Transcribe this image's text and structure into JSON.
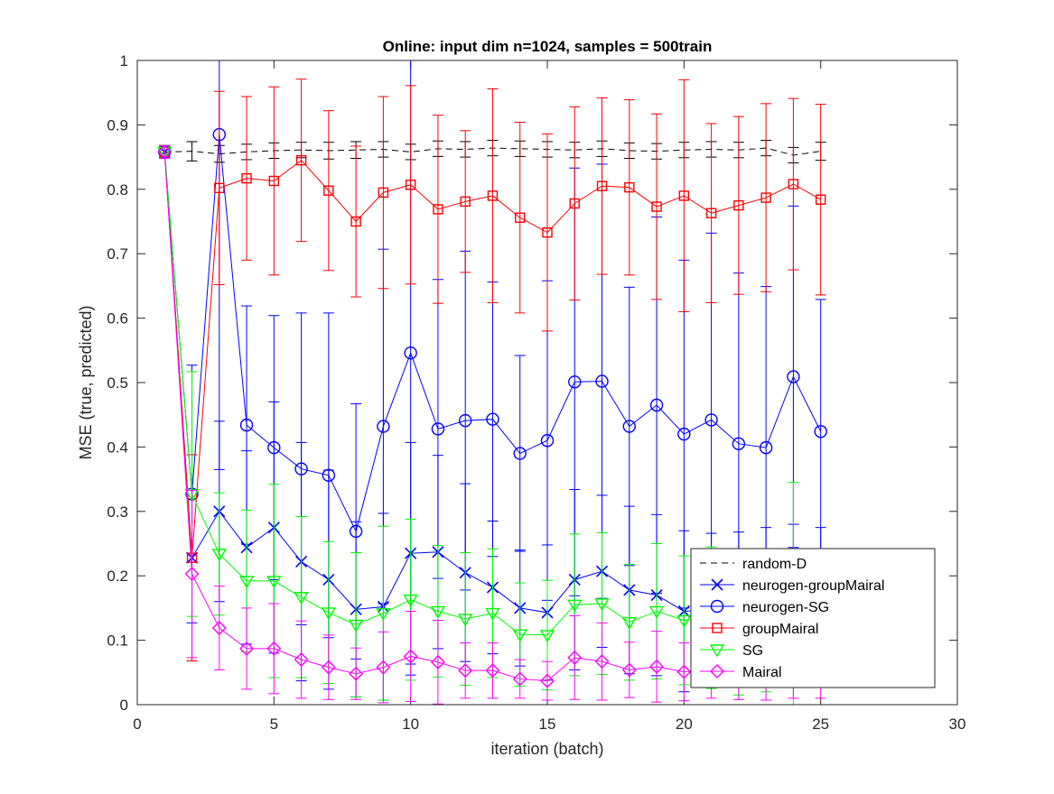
{
  "chart_data": {
    "type": "line",
    "title": "Online:  input dim n=1024, samples = 500train",
    "xlabel": "iteration (batch)",
    "ylabel": "MSE (true, predicted)",
    "xlim": [
      0,
      30
    ],
    "ylim": [
      0,
      1
    ],
    "x_ticks": [
      "0",
      "5",
      "10",
      "15",
      "20",
      "25",
      "30"
    ],
    "y_ticks": [
      "0",
      "0.1",
      "0.2",
      "0.3",
      "0.4",
      "0.5",
      "0.6",
      "0.7",
      "0.8",
      "0.9",
      "1"
    ],
    "grid": false,
    "legend_position": "bottom-right",
    "error_bars": true,
    "x": [
      1,
      2,
      3,
      4,
      5,
      6,
      7,
      8,
      9,
      10,
      11,
      12,
      13,
      14,
      15,
      16,
      17,
      18,
      19,
      20,
      21,
      22,
      23,
      24,
      25
    ],
    "series": [
      {
        "name": "random-D",
        "color": "#000000",
        "line": "dashed",
        "marker": "none",
        "values": [
          0.858,
          0.859,
          0.855,
          0.858,
          0.86,
          0.861,
          0.86,
          0.861,
          0.862,
          0.858,
          0.863,
          0.862,
          0.864,
          0.863,
          0.862,
          0.861,
          0.863,
          0.86,
          0.859,
          0.861,
          0.862,
          0.861,
          0.864,
          0.853,
          0.859
        ],
        "err": [
          0.008,
          0.015,
          0.013,
          0.012,
          0.012,
          0.012,
          0.013,
          0.013,
          0.012,
          0.012,
          0.012,
          0.012,
          0.012,
          0.012,
          0.012,
          0.012,
          0.012,
          0.012,
          0.012,
          0.012,
          0.012,
          0.012,
          0.012,
          0.012,
          0.014
        ]
      },
      {
        "name": "neurogen-groupMairal",
        "color": "#0000ff",
        "line": "solid",
        "marker": "x",
        "values": [
          0.858,
          0.228,
          0.3,
          0.244,
          0.275,
          0.222,
          0.194,
          0.148,
          0.152,
          0.235,
          0.237,
          0.205,
          0.182,
          0.15,
          0.143,
          0.194,
          0.207,
          0.178,
          0.17,
          0.145,
          0.148,
          0.15,
          0.155,
          0.16,
          0.155
        ],
        "err": [
          0.01,
          0.16,
          0.14,
          0.15,
          0.195,
          0.185,
          0.17,
          0.136,
          0.145,
          0.172,
          0.15,
          0.138,
          0.103,
          0.09,
          0.105,
          0.14,
          0.118,
          0.13,
          0.125,
          0.125,
          0.118,
          0.118,
          0.12,
          0.12,
          0.12
        ]
      },
      {
        "name": "neurogen-SG",
        "color": "#0000ff",
        "line": "solid",
        "marker": "circle",
        "values": [
          0.858,
          0.327,
          0.885,
          0.434,
          0.399,
          0.366,
          0.356,
          0.269,
          0.432,
          0.546,
          0.428,
          0.441,
          0.443,
          0.39,
          0.41,
          0.501,
          0.502,
          0.432,
          0.465,
          0.42,
          0.442,
          0.405,
          0.399,
          0.509,
          0.424
        ],
        "err": [
          0.01,
          0.2,
          0.52,
          0.185,
          0.205,
          0.242,
          0.252,
          0.198,
          0.275,
          0.5,
          0.232,
          0.263,
          0.213,
          0.152,
          0.248,
          0.332,
          0.337,
          0.216,
          0.292,
          0.27,
          0.29,
          0.265,
          0.25,
          0.265,
          0.205
        ]
      },
      {
        "name": "groupMairal",
        "color": "#ff0000",
        "line": "solid",
        "marker": "square",
        "values": [
          0.858,
          0.228,
          0.802,
          0.817,
          0.813,
          0.845,
          0.798,
          0.75,
          0.795,
          0.807,
          0.769,
          0.781,
          0.79,
          0.756,
          0.733,
          0.778,
          0.805,
          0.803,
          0.773,
          0.79,
          0.763,
          0.775,
          0.787,
          0.808,
          0.784
        ],
        "err": [
          0.01,
          0.16,
          0.15,
          0.127,
          0.146,
          0.126,
          0.124,
          0.117,
          0.149,
          0.154,
          0.146,
          0.11,
          0.166,
          0.148,
          0.153,
          0.15,
          0.137,
          0.136,
          0.144,
          0.18,
          0.139,
          0.138,
          0.146,
          0.133,
          0.148
        ]
      },
      {
        "name": "SG",
        "color": "#00ff00",
        "line": "solid",
        "marker": "triangle-down",
        "values": [
          0.858,
          0.327,
          0.234,
          0.192,
          0.192,
          0.167,
          0.143,
          0.124,
          0.142,
          0.163,
          0.145,
          0.133,
          0.142,
          0.109,
          0.108,
          0.155,
          0.157,
          0.128,
          0.145,
          0.131,
          0.135,
          0.125,
          0.13,
          0.135,
          0.13
        ],
        "err": [
          0.01,
          0.19,
          0.095,
          0.11,
          0.15,
          0.125,
          0.11,
          0.112,
          0.135,
          0.125,
          0.102,
          0.103,
          0.1,
          0.08,
          0.085,
          0.11,
          0.11,
          0.09,
          0.105,
          0.1,
          0.11,
          0.11,
          0.11,
          0.21,
          0.1
        ]
      },
      {
        "name": "Mairal",
        "color": "#ff00ff",
        "line": "solid",
        "marker": "diamond",
        "values": [
          0.858,
          0.203,
          0.119,
          0.087,
          0.087,
          0.07,
          0.058,
          0.048,
          0.058,
          0.075,
          0.066,
          0.053,
          0.053,
          0.04,
          0.037,
          0.073,
          0.067,
          0.054,
          0.059,
          0.051,
          0.055,
          0.05,
          0.052,
          0.055,
          0.05
        ],
        "err": [
          0.01,
          0.13,
          0.065,
          0.063,
          0.07,
          0.06,
          0.05,
          0.04,
          0.055,
          0.07,
          0.065,
          0.043,
          0.043,
          0.03,
          0.03,
          0.065,
          0.06,
          0.043,
          0.055,
          0.045,
          0.045,
          0.042,
          0.045,
          0.045,
          0.04
        ]
      }
    ]
  }
}
